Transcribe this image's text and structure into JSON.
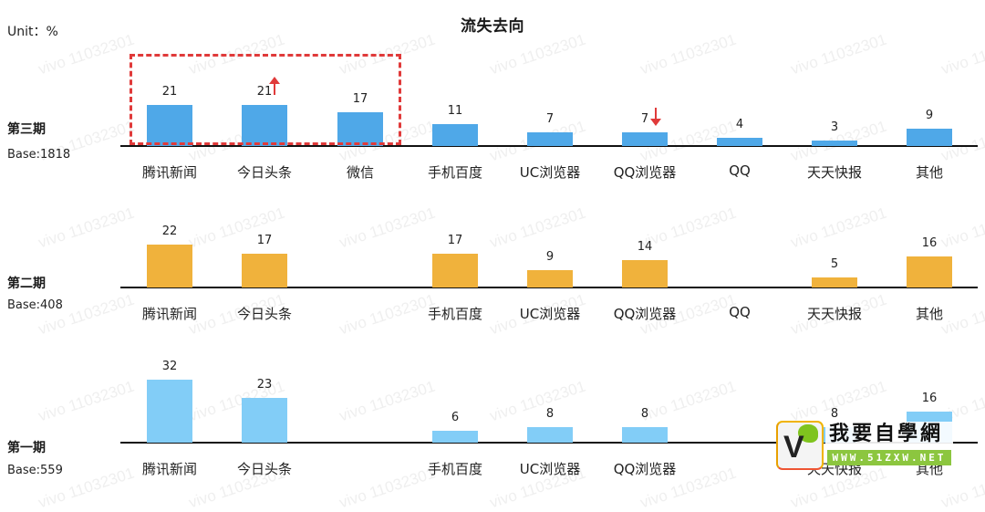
{
  "title": "流失去向",
  "unit": "Unit：%",
  "watermark_text": "vivo 11032301",
  "logo": {
    "cn": "我要自學網",
    "url": "WWW.51ZXW.NET"
  },
  "colors": {
    "period3": "#4fa8e8",
    "period2": "#f0b23c",
    "period1": "#82cdf7",
    "highlight": "#e03a3a",
    "axis": "#111111"
  },
  "categories": [
    "腾讯新闻",
    "今日头条",
    "微信",
    "手机百度",
    "UC浏览器",
    "QQ浏览器",
    "QQ",
    "天天快报",
    "其他"
  ],
  "panels": [
    {
      "period": "第三期",
      "base": "Base:1818",
      "values": [
        "21",
        "21",
        "17",
        "11",
        "7",
        "7",
        "4",
        "3",
        "9"
      ],
      "labels": [
        "腾讯新闻",
        "今日头条",
        "微信",
        "手机百度",
        "UC浏览器",
        "QQ浏览器",
        "QQ",
        "天天快报",
        "其他"
      ]
    },
    {
      "period": "第二期",
      "base": "Base:408",
      "values": [
        "22",
        "17",
        "",
        "17",
        "9",
        "14",
        "",
        "5",
        "16"
      ],
      "labels": [
        "腾讯新闻",
        "今日头条",
        "",
        "手机百度",
        "UC浏览器",
        "QQ浏览器",
        "QQ",
        "天天快报",
        "其他"
      ]
    },
    {
      "period": "第一期",
      "base": "Base:559",
      "values": [
        "32",
        "23",
        "",
        "6",
        "8",
        "8",
        "",
        "8",
        "16"
      ],
      "labels": [
        "腾讯新闻",
        "今日头条",
        "",
        "手机百度",
        "UC浏览器",
        "QQ浏览器",
        "",
        "天天快报",
        "其他"
      ]
    }
  ],
  "chart_data": {
    "type": "bar",
    "title": "流失去向",
    "ylabel": "Unit: %",
    "categories": [
      "腾讯新闻",
      "今日头条",
      "微信",
      "手机百度",
      "UC浏览器",
      "QQ浏览器",
      "QQ",
      "天天快报",
      "其他"
    ],
    "series": [
      {
        "name": "第三期 (Base:1818)",
        "color": "#4fa8e8",
        "values": [
          21,
          21,
          17,
          11,
          7,
          7,
          4,
          3,
          9
        ]
      },
      {
        "name": "第二期 (Base:408)",
        "color": "#f0b23c",
        "values": [
          22,
          17,
          null,
          17,
          9,
          14,
          null,
          5,
          16
        ]
      },
      {
        "name": "第一期 (Base:559)",
        "color": "#82cdf7",
        "values": [
          32,
          23,
          null,
          6,
          8,
          8,
          null,
          8,
          16
        ]
      }
    ],
    "annotations": [
      {
        "type": "dashed-box",
        "around": [
          "腾讯新闻",
          "今日头条",
          "微信"
        ],
        "series": "第三期",
        "color": "#e03a3a"
      },
      {
        "type": "up-arrow",
        "at": "今日头条",
        "series": "第三期"
      },
      {
        "type": "down-arrow",
        "at": "QQ浏览器",
        "series": "第三期"
      }
    ],
    "grid": false,
    "legend": "row labels on left (period + base)"
  }
}
